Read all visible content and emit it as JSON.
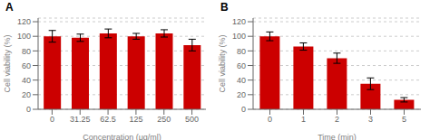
{
  "chart_data": [
    {
      "type": "bar",
      "title": "A",
      "categories": [
        "0",
        "31.25",
        "62.5",
        "125",
        "250",
        "500"
      ],
      "values": [
        100,
        98,
        104,
        100,
        104,
        88
      ],
      "errors": [
        8,
        5,
        6,
        4,
        5,
        8
      ],
      "xlabel": "Concentration (μg/ml)",
      "ylabel": "Cell viability (%)",
      "ylim": [
        0,
        125
      ],
      "yticks": [
        0,
        20,
        40,
        60,
        80,
        100,
        120
      ],
      "color": "#cc0000"
    },
    {
      "type": "bar",
      "title": "B",
      "categories": [
        "0",
        "1",
        "2",
        "3",
        "5"
      ],
      "values": [
        100,
        86,
        70,
        35,
        13
      ],
      "errors": [
        6,
        5,
        7,
        8,
        3
      ],
      "xlabel": "Time (min)",
      "ylabel": "Cell viability (%)",
      "ylim": [
        0,
        125
      ],
      "yticks": [
        0,
        20,
        40,
        60,
        80,
        100,
        120
      ],
      "color": "#cc0000"
    }
  ]
}
